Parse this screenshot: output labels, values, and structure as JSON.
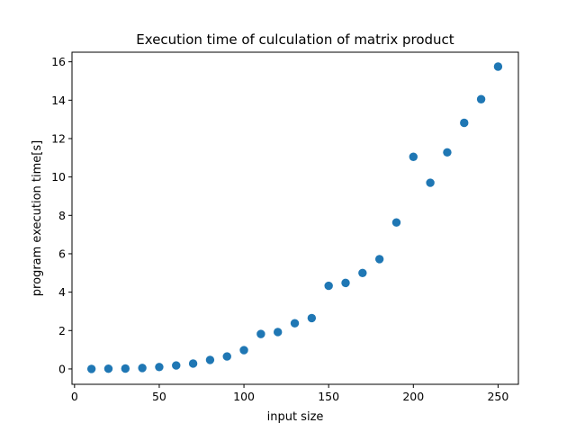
{
  "chart_data": {
    "type": "scatter",
    "title": "Execution time of culculation of matrix product",
    "xlabel": "input size",
    "ylabel": "program execution time[s]",
    "xlim": [
      -1.5,
      262
    ],
    "ylim": [
      -0.8,
      16.5
    ],
    "xticks": [
      0,
      50,
      100,
      150,
      200,
      250
    ],
    "yticks": [
      0,
      2,
      4,
      6,
      8,
      10,
      12,
      14,
      16
    ],
    "marker_color": "#1f77b4",
    "grid": false,
    "legend": "none",
    "series": [
      {
        "x": [
          10,
          20,
          30,
          40,
          50,
          60,
          70,
          80,
          90,
          100,
          110,
          120,
          130,
          140,
          150,
          160,
          170,
          180,
          190,
          200,
          210,
          220,
          230,
          240,
          250
        ],
        "y": [
          0.0,
          0.01,
          0.02,
          0.05,
          0.1,
          0.18,
          0.28,
          0.47,
          0.65,
          0.98,
          1.82,
          1.92,
          2.38,
          2.65,
          4.33,
          4.48,
          5.0,
          5.72,
          7.63,
          11.05,
          9.7,
          11.28,
          12.82,
          14.05,
          15.75
        ]
      }
    ]
  }
}
